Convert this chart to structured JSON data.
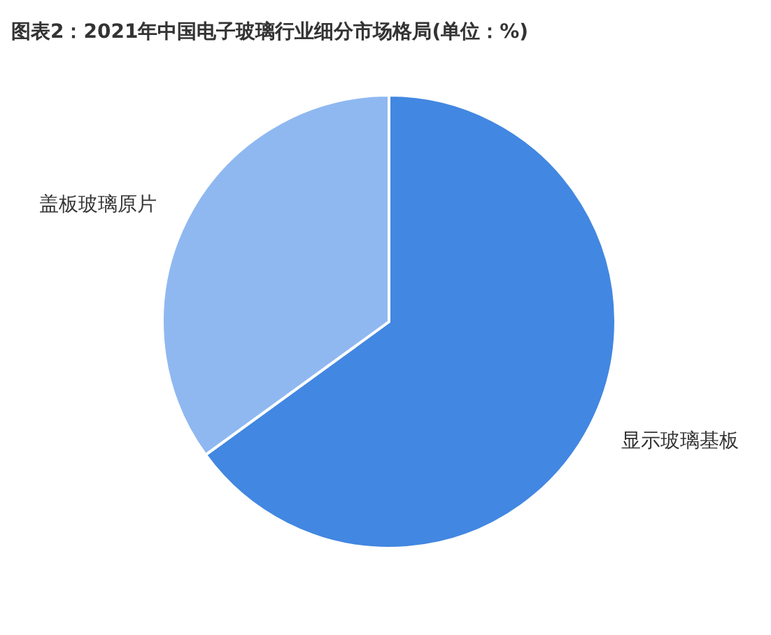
{
  "chart_data": {
    "type": "pie",
    "title": "图表2：2021年中国电子玻璃行业细分市场格局(单位：%)",
    "categories": [
      "显示玻璃基板",
      "盖板玻璃原片"
    ],
    "values": [
      65,
      35
    ],
    "colors": [
      "#4287e1",
      "#8fb8f1"
    ],
    "legend": false
  }
}
